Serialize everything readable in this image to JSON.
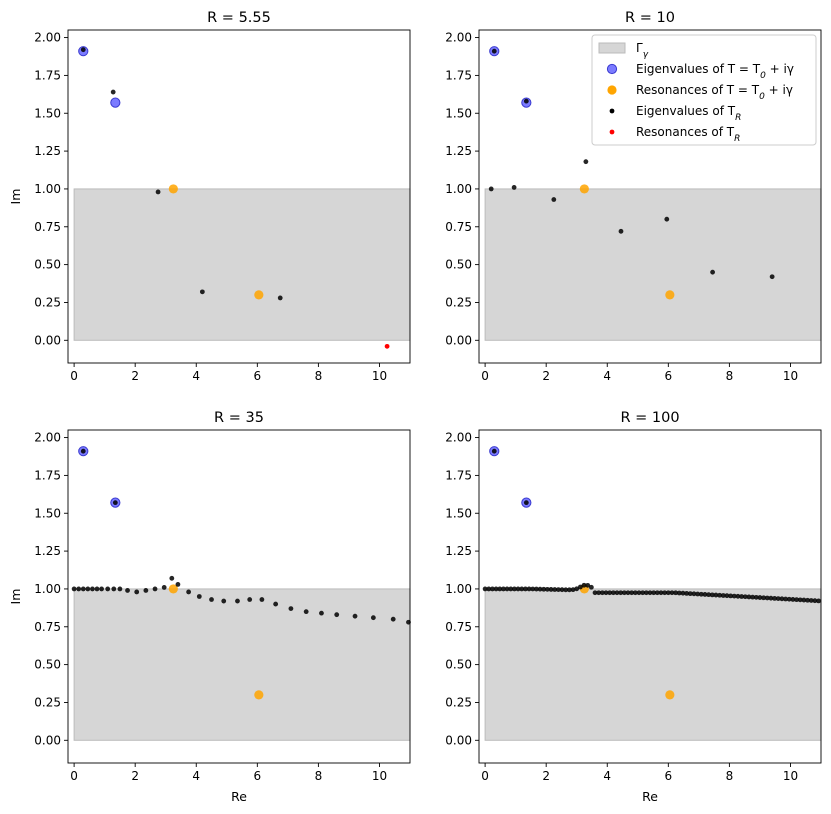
{
  "colors": {
    "region_fill": "#d6d6d6",
    "region_edge": "#bbbbbb",
    "eig_fill": "#7b7bff",
    "eig_edge": "#3a3ad0",
    "res_fill": "#ffa500",
    "tr_eig": "#000000",
    "tr_res": "#ff0000"
  },
  "legend": {
    "placement": "top-right",
    "entries": [
      {
        "key": "gamma",
        "label": "Γ",
        "sub": "γ"
      },
      {
        "key": "eig",
        "label": "Eigenvalues of T = T",
        "sub": "0",
        "tail": " + iγ"
      },
      {
        "key": "res",
        "label": "Resonances of T = T",
        "sub": "0",
        "tail": " + iγ"
      },
      {
        "key": "tr_eig",
        "label": "Eigenvalues of T",
        "sub": "R"
      },
      {
        "key": "tr_res",
        "label": "Resonances of T",
        "sub": "R"
      }
    ]
  },
  "chart_data": [
    {
      "type": "scatter",
      "title": "R = 5.55",
      "xlabel": "",
      "ylabel": "Im",
      "xlim": [
        -0.2,
        11
      ],
      "ylim": [
        -0.15,
        2.05
      ],
      "xticks": [
        "0",
        "2",
        "4",
        "6",
        "8",
        "10"
      ],
      "yticks": [
        "0.00",
        "0.25",
        "0.50",
        "0.75",
        "1.00",
        "1.25",
        "1.50",
        "1.75",
        "2.00"
      ],
      "region": {
        "x": [
          0,
          11
        ],
        "y": [
          0,
          1
        ]
      },
      "eigenvalues_T": [
        [
          0.3,
          1.91
        ],
        [
          1.35,
          1.57
        ]
      ],
      "resonances_T": [
        [
          3.25,
          1.0
        ],
        [
          6.05,
          0.3
        ]
      ],
      "eigenvalues_TR": [
        [
          0.3,
          1.92
        ],
        [
          1.28,
          1.64
        ],
        [
          2.75,
          0.98
        ],
        [
          4.2,
          0.32
        ],
        [
          6.75,
          0.28
        ]
      ],
      "resonances_TR": [
        [
          10.25,
          -0.04
        ]
      ]
    },
    {
      "type": "scatter",
      "title": "R = 10",
      "xlabel": "",
      "ylabel": "",
      "xlim": [
        -0.2,
        11
      ],
      "ylim": [
        -0.15,
        2.05
      ],
      "xticks": [
        "0",
        "2",
        "4",
        "6",
        "8",
        "10"
      ],
      "yticks": [
        "0.00",
        "0.25",
        "0.50",
        "0.75",
        "1.00",
        "1.25",
        "1.50",
        "1.75",
        "2.00"
      ],
      "region": {
        "x": [
          0,
          11
        ],
        "y": [
          0,
          1
        ]
      },
      "eigenvalues_T": [
        [
          0.3,
          1.91
        ],
        [
          1.35,
          1.57
        ]
      ],
      "resonances_T": [
        [
          3.25,
          1.0
        ],
        [
          6.05,
          0.3
        ]
      ],
      "eigenvalues_TR": [
        [
          0.3,
          1.91
        ],
        [
          1.35,
          1.58
        ],
        [
          0.2,
          1.0
        ],
        [
          0.95,
          1.01
        ],
        [
          2.25,
          0.93
        ],
        [
          3.3,
          1.18
        ],
        [
          4.45,
          0.72
        ],
        [
          5.95,
          0.8
        ],
        [
          7.45,
          0.45
        ],
        [
          9.4,
          0.42
        ]
      ],
      "resonances_TR": []
    },
    {
      "type": "scatter",
      "title": "R = 35",
      "xlabel": "Re",
      "ylabel": "Im",
      "xlim": [
        -0.2,
        11
      ],
      "ylim": [
        -0.15,
        2.05
      ],
      "xticks": [
        "0",
        "2",
        "4",
        "6",
        "8",
        "10"
      ],
      "yticks": [
        "0.00",
        "0.25",
        "0.50",
        "0.75",
        "1.00",
        "1.25",
        "1.50",
        "1.75",
        "2.00"
      ],
      "region": {
        "x": [
          0,
          11
        ],
        "y": [
          0,
          1
        ]
      },
      "eigenvalues_T": [
        [
          0.3,
          1.91
        ],
        [
          1.35,
          1.57
        ]
      ],
      "resonances_T": [
        [
          3.25,
          1.0
        ],
        [
          6.05,
          0.3
        ]
      ],
      "eigenvalues_TR": [
        [
          0.3,
          1.91
        ],
        [
          1.35,
          1.57
        ],
        [
          0.0,
          1.0
        ],
        [
          0.15,
          1.0
        ],
        [
          0.3,
          1.0
        ],
        [
          0.45,
          1.0
        ],
        [
          0.6,
          1.0
        ],
        [
          0.75,
          1.0
        ],
        [
          0.9,
          1.0
        ],
        [
          1.1,
          1.0
        ],
        [
          1.3,
          1.0
        ],
        [
          1.5,
          1.0
        ],
        [
          1.75,
          0.99
        ],
        [
          2.05,
          0.98
        ],
        [
          2.35,
          0.99
        ],
        [
          2.65,
          1.0
        ],
        [
          2.95,
          1.01
        ],
        [
          3.2,
          1.07
        ],
        [
          3.4,
          1.03
        ],
        [
          3.75,
          0.98
        ],
        [
          4.1,
          0.95
        ],
        [
          4.5,
          0.93
        ],
        [
          4.9,
          0.92
        ],
        [
          5.35,
          0.92
        ],
        [
          5.75,
          0.93
        ],
        [
          6.15,
          0.93
        ],
        [
          6.6,
          0.9
        ],
        [
          7.1,
          0.87
        ],
        [
          7.6,
          0.85
        ],
        [
          8.1,
          0.84
        ],
        [
          8.6,
          0.83
        ],
        [
          9.2,
          0.82
        ],
        [
          9.8,
          0.81
        ],
        [
          10.45,
          0.8
        ],
        [
          10.95,
          0.78
        ]
      ],
      "resonances_TR": []
    },
    {
      "type": "scatter",
      "title": "R = 100",
      "xlabel": "Re",
      "ylabel": "",
      "xlim": [
        -0.2,
        11
      ],
      "ylim": [
        -0.15,
        2.05
      ],
      "xticks": [
        "0",
        "2",
        "4",
        "6",
        "8",
        "10"
      ],
      "yticks": [
        "0.00",
        "0.25",
        "0.50",
        "0.75",
        "1.00",
        "1.25",
        "1.50",
        "1.75",
        "2.00"
      ],
      "region": {
        "x": [
          0,
          11
        ],
        "y": [
          0,
          1
        ]
      },
      "eigenvalues_T": [
        [
          0.3,
          1.91
        ],
        [
          1.35,
          1.57
        ]
      ],
      "resonances_T": [
        [
          3.25,
          1.0
        ],
        [
          6.05,
          0.3
        ]
      ],
      "eigenvalues_TR": [
        [
          0.3,
          1.91
        ],
        [
          1.35,
          1.57
        ]
      ],
      "dense_curve_TR": {
        "x_start": 0.0,
        "x_end": 11.0,
        "step": 0.12,
        "baseline": 1.0,
        "bump_center": 3.3,
        "bump_height": 0.035,
        "bump_width": 0.25,
        "tail_start": 3.6,
        "tail_level": 0.975,
        "tail_end_level": 0.92,
        "tail_knee": 6.2
      },
      "resonances_TR": []
    }
  ]
}
